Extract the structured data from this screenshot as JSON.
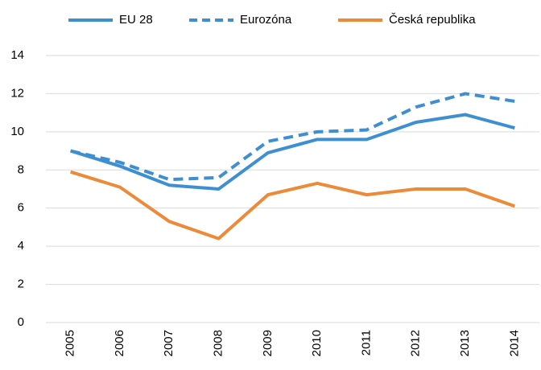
{
  "chart_data": {
    "type": "line",
    "categories": [
      "2005",
      "2006",
      "2007",
      "2008",
      "2009",
      "2010",
      "2011",
      "2012",
      "2013",
      "2014"
    ],
    "series": [
      {
        "name": "EU 28",
        "color": "#3e8fd1",
        "dash": false,
        "values": [
          9.0,
          8.2,
          7.2,
          7.0,
          8.9,
          9.6,
          9.6,
          10.5,
          10.9,
          10.2
        ]
      },
      {
        "name": "Eurozóna",
        "color": "#3e8fd1",
        "dash": true,
        "values": [
          9.0,
          8.4,
          7.5,
          7.6,
          9.5,
          10.0,
          10.1,
          11.3,
          12.0,
          11.6
        ]
      },
      {
        "name": "Česká republika",
        "color": "#ed8a3a",
        "dash": false,
        "values": [
          7.9,
          7.1,
          5.3,
          4.4,
          6.7,
          7.3,
          6.7,
          7.0,
          7.0,
          6.1
        ]
      }
    ],
    "ylim": [
      0,
      14
    ],
    "yticks": [
      0,
      2,
      4,
      6,
      8,
      10,
      12,
      14
    ],
    "grid": true,
    "legend": "top"
  }
}
